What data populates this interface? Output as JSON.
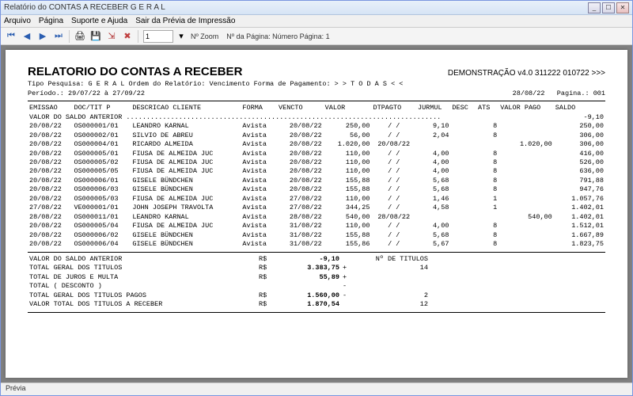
{
  "window": {
    "title": "Relatório do CONTAS A RECEBER G E R A L"
  },
  "menu": {
    "arquivo": "Arquivo",
    "pagina": "Página",
    "suporte": "Suporte e Ajuda",
    "sair": "Sair da Prévia de Impressão"
  },
  "toolbar": {
    "zoom_value": "1",
    "zoom_label": "Nº Zoom",
    "page_label": "Nº da Página: Número Página: 1"
  },
  "report": {
    "title": "RELATORIO DO CONTAS A RECEBER",
    "version": "DEMONSTRAÇÃO v4.0 311222 010722 >>>",
    "tipo": "Tipo Pesquisa: G E R A L    Ordem do Relatório: Vencimento   Forma de Pagamento: > > T O D A S < <",
    "periodo": "Período.: 29/07/22 à 27/09/22",
    "date": "28/08/22",
    "pagina": "Pagina.: 001",
    "headers": {
      "emissao": "EMISSAO",
      "doc": "DOC/TIT",
      "p": "P",
      "desc": "DESCRICAO CLIENTE",
      "forma": "FORMA",
      "vencto": "VENCTO",
      "valor": "VALOR",
      "dtpagto": "DTPAGTO",
      "jurmul": "JURMUL",
      "descx": "DESC",
      "ats": "ATS",
      "pago": "VALOR PAGO",
      "saldo": "SALDO"
    },
    "saldo_anterior_label": "VALOR DO SALDO ANTERIOR ..............................................................................",
    "saldo_anterior": "-9,10",
    "rows": [
      {
        "emissao": "20/08/22",
        "doc": "OS000001/01",
        "desc": "LEANDRO KARNAL",
        "forma": "Avista",
        "vencto": "20/08/22",
        "valor": "250,00",
        "dtpagto": "/  /",
        "jur": "9,10",
        "ats": "8",
        "pago": "",
        "saldo": "250,00"
      },
      {
        "emissao": "20/08/22",
        "doc": "OS000002/01",
        "desc": "SILVIO DE ABREU",
        "forma": "Avista",
        "vencto": "20/08/22",
        "valor": "56,00",
        "dtpagto": "/  /",
        "jur": "2,04",
        "ats": "8",
        "pago": "",
        "saldo": "306,00"
      },
      {
        "emissao": "20/08/22",
        "doc": "OS000004/01",
        "desc": "RICARDO ALMEIDA",
        "forma": "Avista",
        "vencto": "20/08/22",
        "valor": "1.020,00",
        "dtpagto": "20/08/22",
        "jur": "",
        "ats": "",
        "pago": "1.020,00",
        "saldo": "306,00"
      },
      {
        "emissao": "20/08/22",
        "doc": "OS000005/01",
        "desc": "FIUSA DE ALMEIDA JUC",
        "forma": "Avista",
        "vencto": "20/08/22",
        "valor": "110,00",
        "dtpagto": "/  /",
        "jur": "4,00",
        "ats": "8",
        "pago": "",
        "saldo": "416,00"
      },
      {
        "emissao": "20/08/22",
        "doc": "OS000005/02",
        "desc": "FIUSA DE ALMEIDA JUC",
        "forma": "Avista",
        "vencto": "20/08/22",
        "valor": "110,00",
        "dtpagto": "/  /",
        "jur": "4,00",
        "ats": "8",
        "pago": "",
        "saldo": "526,00"
      },
      {
        "emissao": "20/08/22",
        "doc": "OS000005/05",
        "desc": "FIUSA DE ALMEIDA JUC",
        "forma": "Avista",
        "vencto": "20/08/22",
        "valor": "110,00",
        "dtpagto": "/  /",
        "jur": "4,00",
        "ats": "8",
        "pago": "",
        "saldo": "636,00"
      },
      {
        "emissao": "20/08/22",
        "doc": "OS000006/01",
        "desc": "GISELE BÜNDCHEN",
        "forma": "Avista",
        "vencto": "20/08/22",
        "valor": "155,88",
        "dtpagto": "/  /",
        "jur": "5,68",
        "ats": "8",
        "pago": "",
        "saldo": "791,88"
      },
      {
        "emissao": "20/08/22",
        "doc": "OS000006/03",
        "desc": "GISELE BÜNDCHEN",
        "forma": "Avista",
        "vencto": "20/08/22",
        "valor": "155,88",
        "dtpagto": "/  /",
        "jur": "5,68",
        "ats": "8",
        "pago": "",
        "saldo": "947,76"
      },
      {
        "emissao": "20/08/22",
        "doc": "OS000005/03",
        "desc": "FIUSA DE ALMEIDA JUC",
        "forma": "Avista",
        "vencto": "27/08/22",
        "valor": "110,00",
        "dtpagto": "/  /",
        "jur": "1,46",
        "ats": "1",
        "pago": "",
        "saldo": "1.057,76"
      },
      {
        "emissao": "27/08/22",
        "doc": "VE000001/01",
        "desc": "JOHN JOSEPH TRAVOLTA",
        "forma": "Avista",
        "vencto": "27/08/22",
        "valor": "344,25",
        "dtpagto": "/  /",
        "jur": "4,58",
        "ats": "1",
        "pago": "",
        "saldo": "1.402,01"
      },
      {
        "emissao": "28/08/22",
        "doc": "OS000011/01",
        "desc": "LEANDRO KARNAL",
        "forma": "Avista",
        "vencto": "28/08/22",
        "valor": "540,00",
        "dtpagto": "28/08/22",
        "jur": "",
        "ats": "",
        "pago": "540,00",
        "saldo": "1.402,01"
      },
      {
        "emissao": "20/08/22",
        "doc": "OS000005/04",
        "desc": "FIUSA DE ALMEIDA JUC",
        "forma": "Avista",
        "vencto": "31/08/22",
        "valor": "110,00",
        "dtpagto": "/  /",
        "jur": "4,00",
        "ats": "8",
        "pago": "",
        "saldo": "1.512,01"
      },
      {
        "emissao": "20/08/22",
        "doc": "OS000006/02",
        "desc": "GISELE BÜNDCHEN",
        "forma": "Avista",
        "vencto": "31/08/22",
        "valor": "155,88",
        "dtpagto": "/  /",
        "jur": "5,68",
        "ats": "8",
        "pago": "",
        "saldo": "1.667,89"
      },
      {
        "emissao": "20/08/22",
        "doc": "OS000006/04",
        "desc": "GISELE BÜNDCHEN",
        "forma": "Avista",
        "vencto": "31/08/22",
        "valor": "155,86",
        "dtpagto": "/  /",
        "jur": "5,67",
        "ats": "8",
        "pago": "",
        "saldo": "1.823,75"
      }
    ],
    "totals": [
      {
        "label": "VALOR DO SALDO ANTERIOR",
        "cur": "R$",
        "val": "-9,10",
        "sfx": "",
        "n": "Nº DE TITULOS"
      },
      {
        "label": "TOTAL GERAL DOS TITULOS",
        "cur": "R$",
        "val": "3.383,75",
        "sfx": "+",
        "n": "14"
      },
      {
        "label": "TOTAL DE JUROS E MULTA",
        "cur": "R$",
        "val": "55,89",
        "sfx": "+",
        "n": ""
      },
      {
        "label": "TOTAL ( DESCONTO )",
        "cur": "",
        "val": "",
        "sfx": "-",
        "n": ""
      },
      {
        "label": "TOTAL GERAL DOS TITULOS PAGOS",
        "cur": "R$",
        "val": "1.560,00",
        "sfx": "-",
        "n": "2"
      },
      {
        "label": "VALOR TOTAL DOS TITULOS A RECEBER",
        "cur": "R$",
        "val": "1.870,54",
        "sfx": "",
        "n": "12"
      }
    ]
  },
  "status": {
    "previa": "Prévia"
  },
  "style": {
    "bg": "#808080",
    "page_bg": "#ffffff",
    "font_mono": "Courier New"
  }
}
